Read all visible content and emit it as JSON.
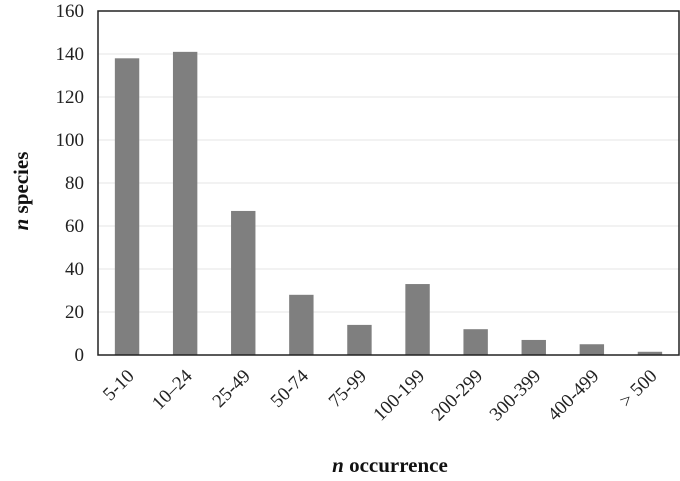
{
  "chart_data": {
    "type": "bar",
    "categories": [
      "5-10",
      "10–24",
      "25-49",
      "50-74",
      "75-99",
      "100-199",
      "200-299",
      "300-399",
      "400-499",
      "> 500"
    ],
    "values": [
      138,
      141,
      67,
      28,
      14,
      33,
      12,
      7,
      5,
      1.5
    ],
    "title": "",
    "xlabel": {
      "prefix": "n",
      "text": "occurrence"
    },
    "ylabel": {
      "prefix": "n",
      "text": "species"
    },
    "ylim": [
      0,
      160
    ],
    "yticks": [
      0,
      20,
      40,
      60,
      80,
      100,
      120,
      140,
      160
    ],
    "grid": true,
    "legend": "none",
    "colors": {
      "bar": "#7f7f7f",
      "grid": "#e6e6e6",
      "frame": "#222222"
    }
  }
}
